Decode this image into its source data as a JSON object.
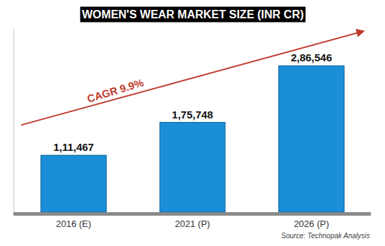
{
  "chart_data": {
    "type": "bar",
    "title": "WOMEN'S WEAR MARKET SIZE (INR CR)",
    "categories": [
      "2016 (E)",
      "2021 (P)",
      "2026 (P)"
    ],
    "values": [
      111467,
      175748,
      286546
    ],
    "value_labels": [
      "1,11,467",
      "1,75,748",
      "2,86,546"
    ],
    "color": "#1a8fd8",
    "ylim": [
      0,
      360000
    ],
    "data_labels": true,
    "tick_labels": "x",
    "grid": false,
    "annotation": "CAGR 9.9%",
    "source": "Source: Technopak Analysis"
  }
}
